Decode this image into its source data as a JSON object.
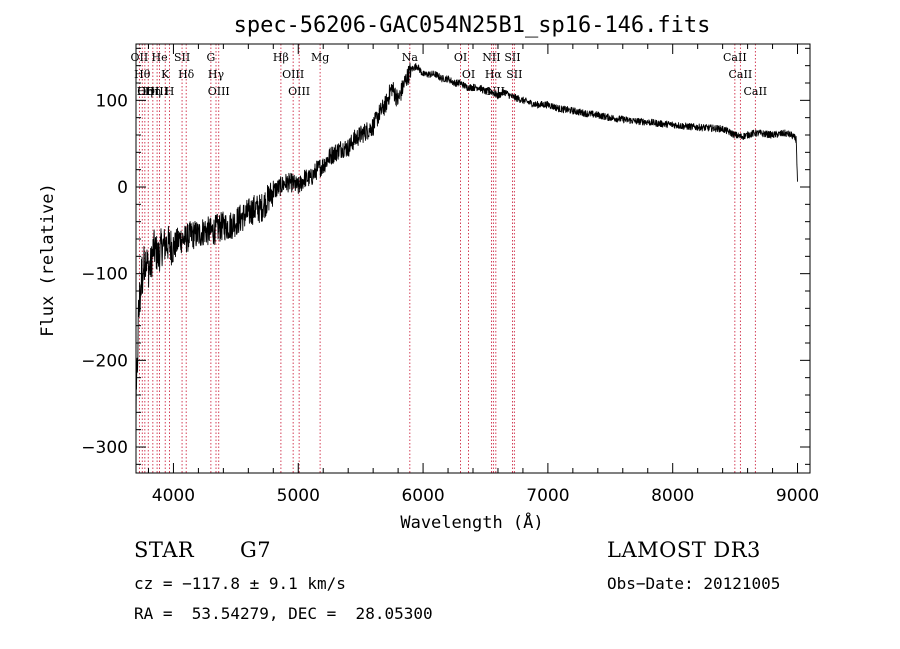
{
  "chart_data": {
    "type": "line",
    "title": "spec-56206-GAC054N25B1_sp16-146.fits",
    "xlabel": "Wavelength (Å)",
    "ylabel": "Flux (relative)",
    "xlim": [
      3700,
      9100
    ],
    "ylim": [
      -330,
      165
    ],
    "xticks": [
      4000,
      5000,
      6000,
      7000,
      8000,
      9000
    ],
    "yticks": [
      -300,
      -200,
      -100,
      0,
      100
    ],
    "series": [
      {
        "name": "flux",
        "x": [
          3700,
          3720,
          3740,
          3760,
          3780,
          3800,
          3820,
          3840,
          3860,
          3880,
          3900,
          3950,
          4000,
          4050,
          4100,
          4150,
          4200,
          4250,
          4300,
          4350,
          4400,
          4450,
          4500,
          4550,
          4600,
          4650,
          4700,
          4750,
          4800,
          4850,
          4900,
          4950,
          5000,
          5050,
          5100,
          5150,
          5200,
          5250,
          5300,
          5350,
          5400,
          5450,
          5500,
          5550,
          5600,
          5650,
          5700,
          5750,
          5800,
          5850,
          5900,
          5950,
          6000,
          6050,
          6100,
          6150,
          6200,
          6250,
          6300,
          6350,
          6400,
          6450,
          6500,
          6550,
          6600,
          6650,
          6700,
          6800,
          6900,
          7000,
          7100,
          7200,
          7300,
          7400,
          7500,
          7600,
          7700,
          7800,
          7900,
          8000,
          8100,
          8200,
          8300,
          8400,
          8500,
          8550,
          8600,
          8650,
          8700,
          8800,
          8900,
          8950,
          8990,
          9000
        ],
        "y": [
          -270,
          -150,
          -110,
          -90,
          -80,
          -95,
          -90,
          -70,
          -75,
          -80,
          -70,
          -65,
          -70,
          -60,
          -60,
          -55,
          -55,
          -50,
          -52,
          -48,
          -45,
          -45,
          -40,
          -35,
          -30,
          -25,
          -25,
          -15,
          -5,
          0,
          5,
          5,
          0,
          10,
          10,
          20,
          25,
          35,
          40,
          45,
          45,
          55,
          60,
          65,
          70,
          85,
          95,
          115,
          100,
          120,
          135,
          140,
          130,
          130,
          130,
          125,
          125,
          120,
          120,
          115,
          115,
          115,
          110,
          110,
          105,
          110,
          105,
          100,
          95,
          95,
          90,
          88,
          85,
          83,
          80,
          78,
          76,
          75,
          73,
          72,
          70,
          69,
          68,
          67,
          60,
          58,
          60,
          62,
          62,
          60,
          62,
          60,
          55,
          5
        ]
      }
    ],
    "lines": [
      {
        "x": 3727,
        "label": "OII"
      },
      {
        "x": 3750,
        "label": "Hθ"
      },
      {
        "x": 3771,
        "label": "Hη"
      },
      {
        "x": 3798,
        "label": "OIII"
      },
      {
        "x": 3835,
        "label": "Hη"
      },
      {
        "x": 3869,
        "label": "OIII"
      },
      {
        "x": 3889,
        "label": "He"
      },
      {
        "x": 3934,
        "label": "K"
      },
      {
        "x": 3969,
        "label": "H"
      },
      {
        "x": 4069,
        "label": "SII"
      },
      {
        "x": 4102,
        "label": "Hδ"
      },
      {
        "x": 4300,
        "label": "G"
      },
      {
        "x": 4341,
        "label": "Hγ"
      },
      {
        "x": 4363,
        "label": "OIII"
      },
      {
        "x": 4861,
        "label": "Hβ"
      },
      {
        "x": 4959,
        "label": "OIII"
      },
      {
        "x": 5007,
        "label": "OIII"
      },
      {
        "x": 5175,
        "label": "Mg"
      },
      {
        "x": 5894,
        "label": "Na"
      },
      {
        "x": 6300,
        "label": "OI"
      },
      {
        "x": 6364,
        "label": "OI"
      },
      {
        "x": 6548,
        "label": "NII"
      },
      {
        "x": 6563,
        "label": "Hα"
      },
      {
        "x": 6583,
        "label": "NII"
      },
      {
        "x": 6716,
        "label": "SII"
      },
      {
        "x": 6731,
        "label": "SII"
      },
      {
        "x": 8498,
        "label": "CaII"
      },
      {
        "x": 8542,
        "label": "CaII"
      },
      {
        "x": 8662,
        "label": "CaII"
      }
    ]
  },
  "info": {
    "object_class": "STAR",
    "subclass": "G7",
    "survey": "LAMOST DR3",
    "redshift": "cz = −117.8 ± 9.1 km/s",
    "obs_date": "Obs−Date: 20121005",
    "coords": "RA =  53.54279, DEC =  28.05300"
  },
  "colors": {
    "spectrum": "#000000",
    "line_marker": "#c8102e",
    "axis": "#000000"
  }
}
